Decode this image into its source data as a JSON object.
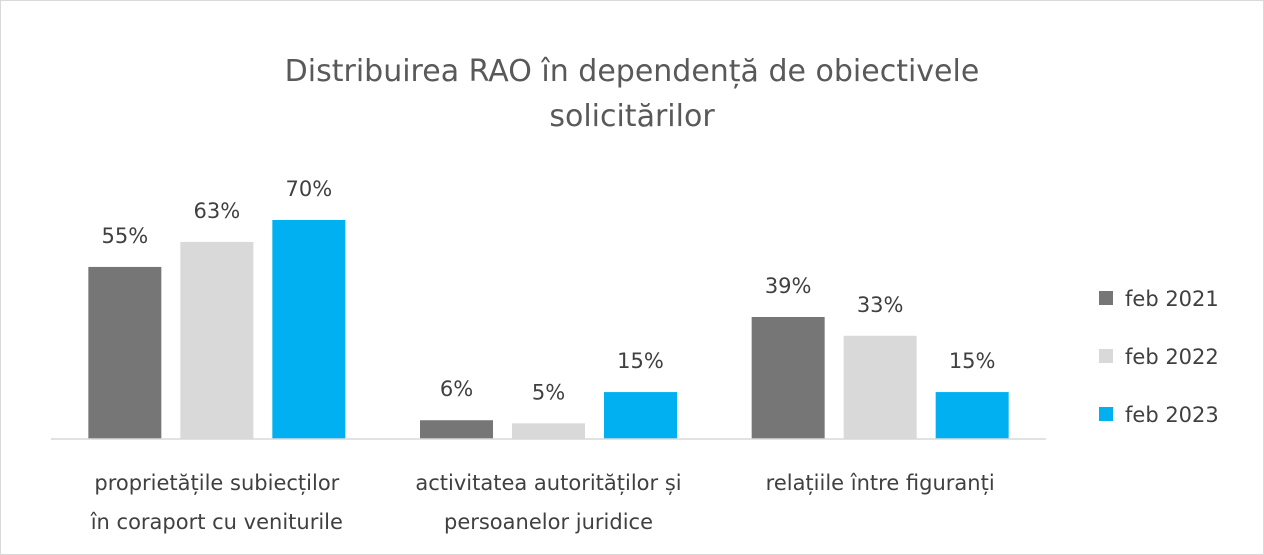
{
  "chart_data": {
    "type": "bar",
    "title": "Distribuirea RAO în dependență de obiectivele\nsolicitărilor",
    "categories": [
      "proprietățile subiecților\nîn coraport cu veniturile",
      "activitatea autorităților și\npersoanelor juridice",
      "relațiile între figuranți"
    ],
    "series": [
      {
        "name": "feb 2021",
        "color": "#767676",
        "values": [
          55,
          6,
          39
        ],
        "value_labels": [
          "55%",
          "6%",
          "39%"
        ]
      },
      {
        "name": "feb 2022",
        "color": "#d9d9d9",
        "values": [
          63,
          5,
          33
        ],
        "value_labels": [
          "63%",
          "5%",
          "33%"
        ]
      },
      {
        "name": "feb 2023",
        "color": "#00b0f0",
        "values": [
          70,
          15,
          15
        ],
        "value_labels": [
          "70%",
          "15%",
          "15%"
        ]
      }
    ],
    "legend": "right"
  }
}
